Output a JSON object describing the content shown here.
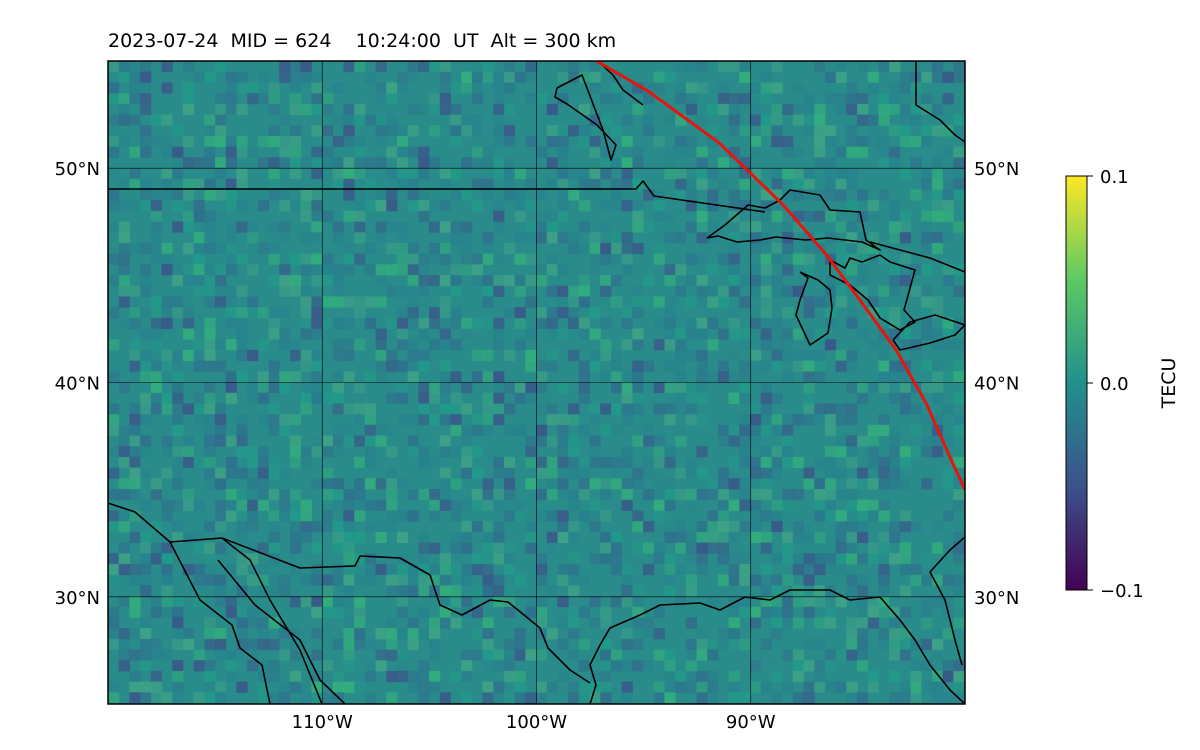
{
  "title": {
    "date": "2023-07-24",
    "mid": "MID = 624",
    "time": "10:24:00  UT",
    "alt": "Alt = 300 km"
  },
  "map": {
    "lon_range": [
      -120,
      -80
    ],
    "lat_range": [
      25,
      55
    ],
    "lon_ticks": [
      -110,
      -100,
      -90
    ],
    "lat_ticks": [
      30,
      40,
      50
    ],
    "lon_tick_labels": [
      "110°W",
      "100°W",
      "90°W"
    ],
    "lat_tick_labels": [
      "30°N",
      "40°N",
      "50°N"
    ],
    "background_color": "#2a8c8a",
    "coastline_color": "#000000",
    "track_color": "#e8140c",
    "track": [
      [
        -97.2,
        55
      ],
      [
        -94.8,
        53.6
      ],
      [
        -91.5,
        51.2
      ],
      [
        -88.5,
        48.3
      ],
      [
        -86.5,
        46
      ],
      [
        -84.8,
        43.7
      ],
      [
        -83.2,
        41.5
      ],
      [
        -81.8,
        39
      ],
      [
        -80.6,
        36.3
      ],
      [
        -80,
        35
      ]
    ]
  },
  "colorbar": {
    "label": "TECU",
    "min": -0.1,
    "max": 0.1,
    "tick_labels": [
      "0.1",
      "0.0",
      "−0.1"
    ],
    "colors": [
      "#440154",
      "#3b528b",
      "#21908d",
      "#5dc963",
      "#fde725"
    ]
  }
}
